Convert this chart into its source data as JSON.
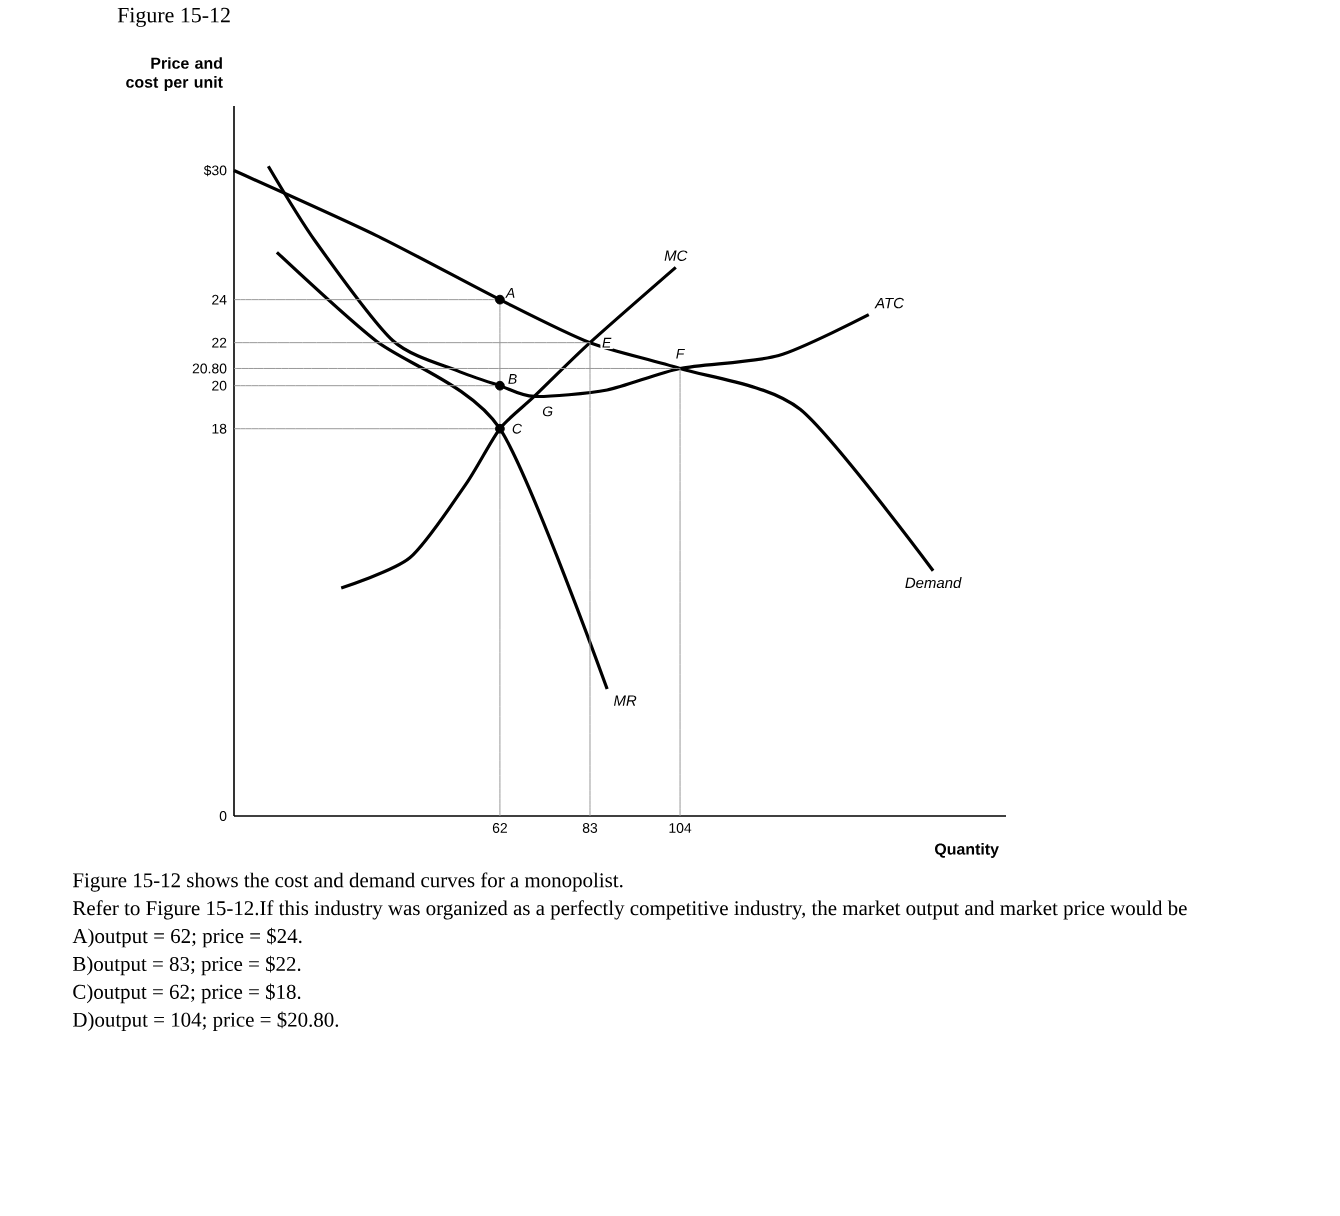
{
  "chart_data": {
    "type": "line",
    "title": "Figure 15-12",
    "ylabel": "Price and cost per unit",
    "xlabel": "Quantity",
    "xlim": [
      0,
      180
    ],
    "ylim": [
      0,
      33
    ],
    "xticks": [
      62,
      83,
      104
    ],
    "yticks": [
      0,
      18,
      20,
      {
        "value": 20.8,
        "label": "20.80"
      },
      22,
      24,
      {
        "value": 30,
        "label": "$30"
      }
    ],
    "line_style": "solid",
    "series": [
      {
        "name": "Demand",
        "color": "#000000",
        "x": [
          0,
          33,
          62,
          83,
          104,
          132,
          163
        ],
        "values": [
          30,
          27,
          24,
          22,
          20.8,
          18.9,
          11.4
        ]
      },
      {
        "name": "MR",
        "color": "#000000",
        "x": [
          10,
          33,
          62,
          87
        ],
        "values": [
          26.2,
          22.1,
          18,
          5.9
        ]
      },
      {
        "name": "ATC",
        "color": "#000000",
        "x": [
          8,
          19,
          37,
          52,
          62,
          70,
          87,
          104,
          127,
          148
        ],
        "values": [
          30.2,
          26.7,
          22.1,
          20.7,
          20,
          19.5,
          19.8,
          20.8,
          21.4,
          23.3
        ]
      },
      {
        "name": "MC",
        "color": "#000000",
        "x": [
          25,
          41,
          54,
          62,
          70,
          83,
          103
        ],
        "values": [
          10.6,
          12,
          15.4,
          18,
          19.5,
          22,
          25.5
        ]
      },
      {
        "color": "#999999",
        "x": [
          0,
          62
        ],
        "values": [
          24,
          24
        ]
      },
      {
        "color": "#999999",
        "x": [
          0,
          83
        ],
        "values": [
          22,
          22
        ]
      },
      {
        "color": "#999999",
        "x": [
          0,
          104
        ],
        "values": [
          20.8,
          20.8
        ]
      },
      {
        "color": "#999999",
        "x": [
          0,
          62
        ],
        "values": [
          20,
          20
        ]
      },
      {
        "color": "#999999",
        "x": [
          0,
          62
        ],
        "values": [
          18,
          18
        ]
      },
      {
        "color": "#999999",
        "x": [
          62,
          62
        ],
        "values": [
          0,
          24
        ]
      },
      {
        "color": "#999999",
        "x": [
          83,
          83
        ],
        "values": [
          0,
          22
        ]
      },
      {
        "color": "#999999",
        "x": [
          104,
          104
        ],
        "values": [
          0,
          20.8
        ]
      },
      {
        "type": "scatter",
        "marker": "circle",
        "color": "#000000",
        "x": [
          62,
          62,
          62
        ],
        "values": [
          24,
          20,
          18
        ]
      }
    ],
    "annotations": [
      {
        "text": "A",
        "x": 62,
        "y": 24
      },
      {
        "text": "B",
        "x": 62,
        "y": 20
      },
      {
        "text": "C",
        "x": 62,
        "y": 18
      },
      {
        "text": "E",
        "x": 83,
        "y": 22
      },
      {
        "text": "F",
        "x": 104,
        "y": 20.8
      },
      {
        "text": "G",
        "x": 70,
        "y": 19.5
      },
      "Figure 15-12 shows the cost and demand curves for a monopolist.",
      "Refer to Figure 15-12.If this industry was organized as a perfectly competitive industry, the market output and market price would be",
      "A)output = 62; price = $24.",
      "B)output = 83; price = $22.",
      "C)output = 62; price = $18.",
      "D)output = 104; price = $20.80."
    ]
  }
}
